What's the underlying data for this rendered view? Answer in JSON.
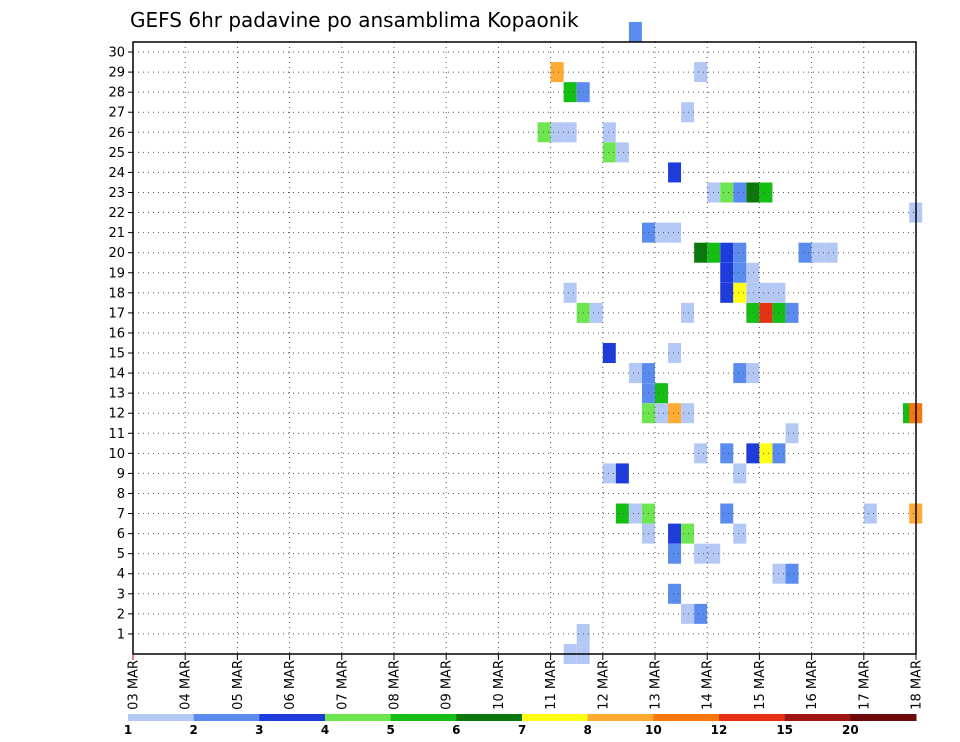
{
  "chart_data": {
    "type": "heatmap",
    "title": "GEFS 6hr padavine po ansamblima Kopaonik",
    "xlabel": "",
    "ylabel": "",
    "x_tick_labels": [
      "03 MAR",
      "04 MAR",
      "05 MAR",
      "06 MAR",
      "07 MAR",
      "08 MAR",
      "09 MAR",
      "10 MAR",
      "11 MAR",
      "12 MAR",
      "13 MAR",
      "14 MAR",
      "15 MAR",
      "16 MAR",
      "17 MAR",
      "18 MAR"
    ],
    "y_tick_labels": [
      "1",
      "2",
      "3",
      "4",
      "5",
      "6",
      "7",
      "8",
      "9",
      "10",
      "11",
      "12",
      "13",
      "14",
      "15",
      "16",
      "17",
      "18",
      "19",
      "20",
      "21",
      "22",
      "23",
      "24",
      "25",
      "26",
      "27",
      "28",
      "29",
      "30"
    ],
    "xlim_days": [
      0,
      15
    ],
    "ylim_members": [
      0,
      30
    ],
    "grid": true,
    "legend_position": "bottom",
    "colorbar": {
      "labels": [
        "1",
        "2",
        "3",
        "4",
        "5",
        "6",
        "7",
        "8",
        "10",
        "12",
        "15",
        "20"
      ],
      "colors": [
        "#b4c8f5",
        "#5a8cf0",
        "#1e3cdc",
        "#6ee650",
        "#14be14",
        "#0a780a",
        "#ffff14",
        "#ffaa32",
        "#fa780a",
        "#e63214",
        "#a01414",
        "#6e0a0a"
      ]
    },
    "cells": [
      {
        "member": 0,
        "day": 8.25,
        "v": 1
      },
      {
        "member": 0,
        "day": 8.5,
        "v": 1
      },
      {
        "member": 1,
        "day": 8.5,
        "v": 1
      },
      {
        "member": 2,
        "day": 10.5,
        "v": 1
      },
      {
        "member": 2,
        "day": 10.75,
        "v": 2
      },
      {
        "member": 3,
        "day": 10.25,
        "v": 2
      },
      {
        "member": 4,
        "day": 12.25,
        "v": 1
      },
      {
        "member": 4,
        "day": 12.5,
        "v": 2
      },
      {
        "member": 5,
        "day": 10.25,
        "v": 2
      },
      {
        "member": 5,
        "day": 10.75,
        "v": 1
      },
      {
        "member": 5,
        "day": 11.0,
        "v": 1
      },
      {
        "member": 6,
        "day": 9.75,
        "v": 1
      },
      {
        "member": 6,
        "day": 10.25,
        "v": 3
      },
      {
        "member": 6,
        "day": 10.5,
        "v": 4
      },
      {
        "member": 6,
        "day": 11.5,
        "v": 1
      },
      {
        "member": 7,
        "day": 9.25,
        "v": 5
      },
      {
        "member": 7,
        "day": 9.5,
        "v": 1
      },
      {
        "member": 7,
        "day": 9.75,
        "v": 4
      },
      {
        "member": 7,
        "day": 11.25,
        "v": 2
      },
      {
        "member": 7,
        "day": 14.0,
        "v": 1
      },
      {
        "member": 7,
        "day": 14.87,
        "v": 8
      },
      {
        "member": 9,
        "day": 9.0,
        "v": 1
      },
      {
        "member": 9,
        "day": 9.25,
        "v": 3
      },
      {
        "member": 9,
        "day": 11.5,
        "v": 1
      },
      {
        "member": 10,
        "day": 10.75,
        "v": 1
      },
      {
        "member": 10,
        "day": 11.25,
        "v": 2
      },
      {
        "member": 10,
        "day": 11.75,
        "v": 3
      },
      {
        "member": 10,
        "day": 12.0,
        "v": 7
      },
      {
        "member": 10,
        "day": 12.25,
        "v": 2
      },
      {
        "member": 11,
        "day": 12.5,
        "v": 1
      },
      {
        "member": 12,
        "day": 9.75,
        "v": 4
      },
      {
        "member": 12,
        "day": 10.0,
        "v": 1
      },
      {
        "member": 12,
        "day": 10.25,
        "v": 8
      },
      {
        "member": 12,
        "day": 10.5,
        "v": 1
      },
      {
        "member": 12,
        "day": 14.75,
        "v": 5
      },
      {
        "member": 12,
        "day": 14.87,
        "v": 9
      },
      {
        "member": 13,
        "day": 9.75,
        "v": 2
      },
      {
        "member": 13,
        "day": 10.0,
        "v": 5
      },
      {
        "member": 14,
        "day": 9.5,
        "v": 1
      },
      {
        "member": 14,
        "day": 9.75,
        "v": 2
      },
      {
        "member": 14,
        "day": 11.5,
        "v": 2
      },
      {
        "member": 14,
        "day": 11.75,
        "v": 1
      },
      {
        "member": 15,
        "day": 9.0,
        "v": 3
      },
      {
        "member": 15,
        "day": 10.25,
        "v": 1
      },
      {
        "member": 17,
        "day": 8.5,
        "v": 4
      },
      {
        "member": 17,
        "day": 8.75,
        "v": 1
      },
      {
        "member": 17,
        "day": 10.5,
        "v": 1
      },
      {
        "member": 17,
        "day": 11.75,
        "v": 5
      },
      {
        "member": 17,
        "day": 12.0,
        "v": 10
      },
      {
        "member": 17,
        "day": 12.25,
        "v": 5
      },
      {
        "member": 17,
        "day": 12.5,
        "v": 2
      },
      {
        "member": 18,
        "day": 8.25,
        "v": 1
      },
      {
        "member": 18,
        "day": 11.25,
        "v": 3
      },
      {
        "member": 18,
        "day": 11.5,
        "v": 7
      },
      {
        "member": 18,
        "day": 11.75,
        "v": 1
      },
      {
        "member": 18,
        "day": 12.0,
        "v": 1
      },
      {
        "member": 18,
        "day": 12.25,
        "v": 1
      },
      {
        "member": 19,
        "day": 11.25,
        "v": 3
      },
      {
        "member": 19,
        "day": 11.5,
        "v": 2
      },
      {
        "member": 19,
        "day": 11.75,
        "v": 1
      },
      {
        "member": 20,
        "day": 10.75,
        "v": 6
      },
      {
        "member": 20,
        "day": 11.0,
        "v": 5
      },
      {
        "member": 20,
        "day": 11.25,
        "v": 3
      },
      {
        "member": 20,
        "day": 11.5,
        "v": 2
      },
      {
        "member": 20,
        "day": 12.75,
        "v": 2
      },
      {
        "member": 20,
        "day": 13.0,
        "v": 1
      },
      {
        "member": 20,
        "day": 13.25,
        "v": 1
      },
      {
        "member": 21,
        "day": 9.75,
        "v": 2
      },
      {
        "member": 21,
        "day": 10.0,
        "v": 1
      },
      {
        "member": 21,
        "day": 10.25,
        "v": 1
      },
      {
        "member": 22,
        "day": 14.87,
        "v": 1
      },
      {
        "member": 23,
        "day": 11.0,
        "v": 1
      },
      {
        "member": 23,
        "day": 11.25,
        "v": 4
      },
      {
        "member": 23,
        "day": 11.5,
        "v": 2
      },
      {
        "member": 23,
        "day": 11.75,
        "v": 6
      },
      {
        "member": 23,
        "day": 12.0,
        "v": 5
      },
      {
        "member": 24,
        "day": 10.25,
        "v": 3
      },
      {
        "member": 25,
        "day": 9.0,
        "v": 4
      },
      {
        "member": 25,
        "day": 9.25,
        "v": 1
      },
      {
        "member": 26,
        "day": 7.75,
        "v": 4
      },
      {
        "member": 26,
        "day": 8.0,
        "v": 1
      },
      {
        "member": 26,
        "day": 8.25,
        "v": 1
      },
      {
        "member": 26,
        "day": 9.0,
        "v": 1
      },
      {
        "member": 27,
        "day": 10.5,
        "v": 1
      },
      {
        "member": 28,
        "day": 8.25,
        "v": 5
      },
      {
        "member": 28,
        "day": 8.5,
        "v": 2
      },
      {
        "member": 29,
        "day": 8.0,
        "v": 8
      },
      {
        "member": 29,
        "day": 10.75,
        "v": 1
      },
      {
        "member": 31,
        "day": 9.5,
        "v": 2
      }
    ]
  }
}
